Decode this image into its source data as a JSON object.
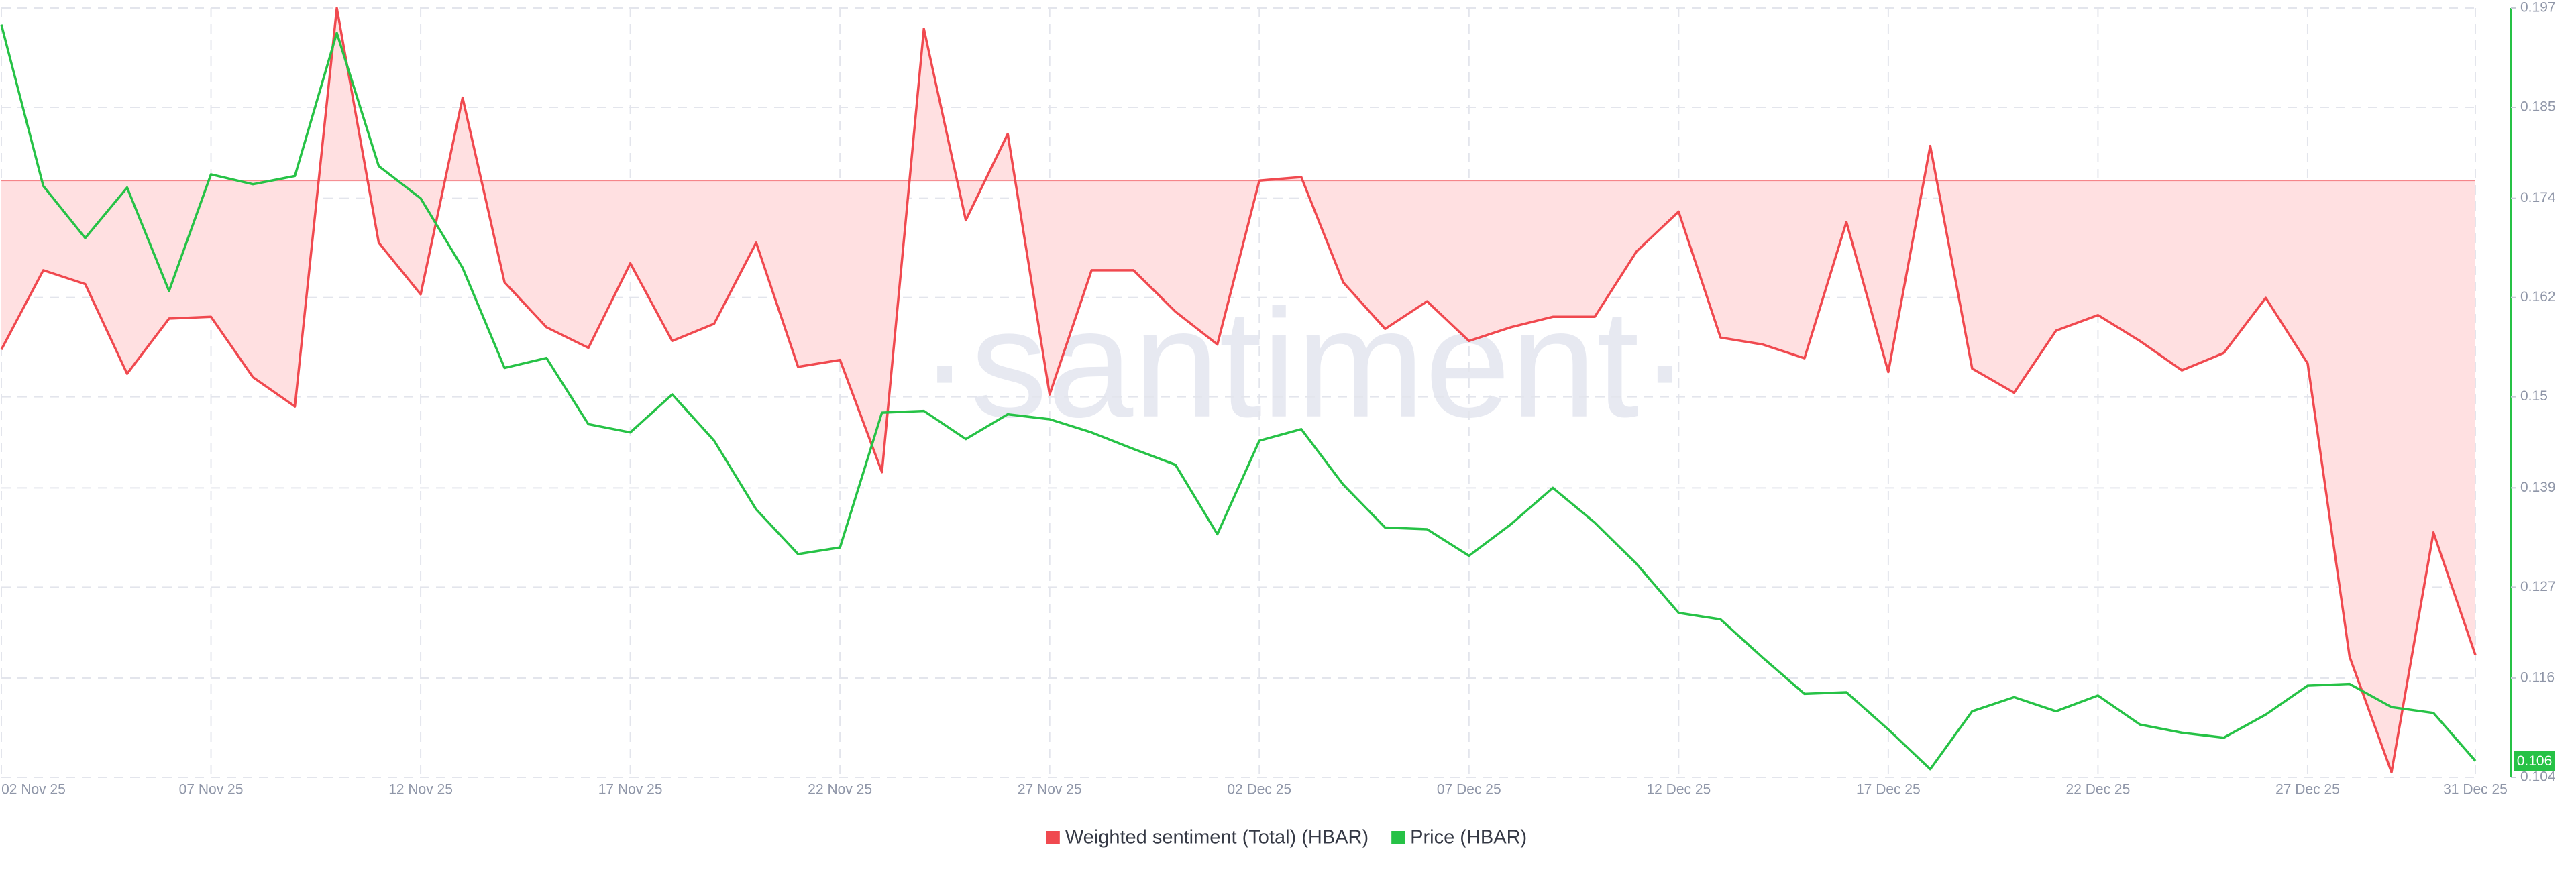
{
  "chart_data": {
    "type": "line",
    "watermark": "·santiment·",
    "categories": [
      "02 Nov 25",
      null,
      null,
      null,
      null,
      "07 Nov 25",
      null,
      null,
      null,
      null,
      "12 Nov 25",
      null,
      null,
      null,
      null,
      "17 Nov 25",
      null,
      null,
      null,
      null,
      "22 Nov 25",
      null,
      null,
      null,
      null,
      "27 Nov 25",
      null,
      null,
      null,
      null,
      "02 Dec 25",
      null,
      null,
      null,
      null,
      "07 Dec 25",
      null,
      null,
      null,
      null,
      "12 Dec 25",
      null,
      null,
      null,
      null,
      "17 Dec 25",
      null,
      null,
      null,
      null,
      "22 Dec 25",
      null,
      null,
      null,
      null,
      "27 Dec 25",
      null,
      null,
      null,
      "31 Dec 25"
    ],
    "series": [
      {
        "name": "Weighted sentiment (Total) (HBAR)",
        "color": "#f0494f",
        "fill": "#ffe0e1",
        "axis": "y",
        "values": [
          -0.98,
          -0.52,
          -0.6,
          -1.12,
          -0.8,
          -0.79,
          -1.14,
          -1.31,
          1.0,
          -0.36,
          -0.66,
          0.48,
          -0.59,
          -0.85,
          -0.97,
          -0.48,
          -0.93,
          -0.83,
          -0.36,
          -1.08,
          -1.04,
          -1.69,
          0.88,
          -0.23,
          0.27,
          -1.24,
          -0.52,
          -0.52,
          -0.76,
          -0.95,
          0.0,
          0.02,
          -0.59,
          -0.86,
          -0.7,
          -0.93,
          -0.85,
          -0.79,
          -0.79,
          -0.41,
          -0.18,
          -0.91,
          -0.95,
          -1.03,
          -0.24,
          -1.11,
          0.2,
          -1.09,
          -1.23,
          -0.87,
          -0.78,
          -0.93,
          -1.1,
          -1.0,
          -0.68,
          -1.06,
          -2.76,
          -3.43,
          -2.04,
          -2.75
        ]
      },
      {
        "name": "Price (HBAR)",
        "color": "#26c246",
        "axis": "y2",
        "values": [
          0.195,
          0.1755,
          0.1692,
          0.1753,
          0.1628,
          0.1769,
          0.1757,
          0.1767,
          0.194,
          0.1779,
          0.174,
          0.1656,
          0.1535,
          0.1547,
          0.1467,
          0.1457,
          0.1503,
          0.1447,
          0.1364,
          0.131,
          0.1318,
          0.1481,
          0.1483,
          0.1449,
          0.1479,
          0.1473,
          0.1457,
          0.1437,
          0.1418,
          0.1334,
          0.1447,
          0.1461,
          0.1394,
          0.1342,
          0.134,
          0.1308,
          0.1346,
          0.139,
          0.1348,
          0.1298,
          0.1239,
          0.1231,
          0.1185,
          0.1141,
          0.1143,
          0.1098,
          0.105,
          0.112,
          0.1137,
          0.112,
          0.1139,
          0.1104,
          0.1094,
          0.1088,
          0.1116,
          0.1151,
          0.1153,
          0.1125,
          0.1118,
          0.106
        ]
      }
    ],
    "ylim": [
      -3.46,
      1
    ],
    "y2lim": [
      0.104,
      0.197
    ],
    "y2ticks": [
      0.104,
      0.116,
      0.127,
      0.139,
      0.15,
      0.162,
      0.174,
      0.185,
      0.197
    ],
    "grid": true,
    "legend": "bottom"
  }
}
